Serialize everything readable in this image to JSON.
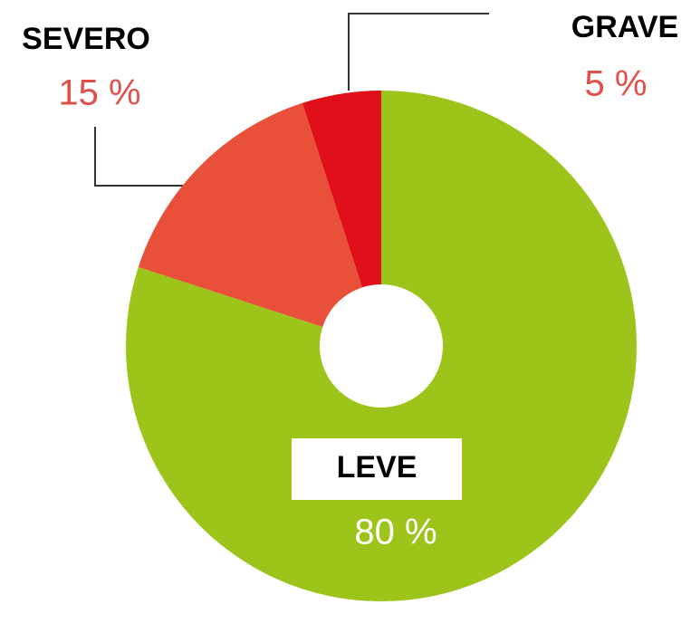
{
  "chart_data": {
    "type": "donut",
    "categories": [
      "LEVE",
      "SEVERO",
      "GRAVE"
    ],
    "values": [
      80,
      15,
      5
    ],
    "value_labels": [
      "80 %",
      "15 %",
      "5 %"
    ],
    "colors": [
      "#9dc41a",
      "#e8503a",
      "#e0101a"
    ]
  }
}
